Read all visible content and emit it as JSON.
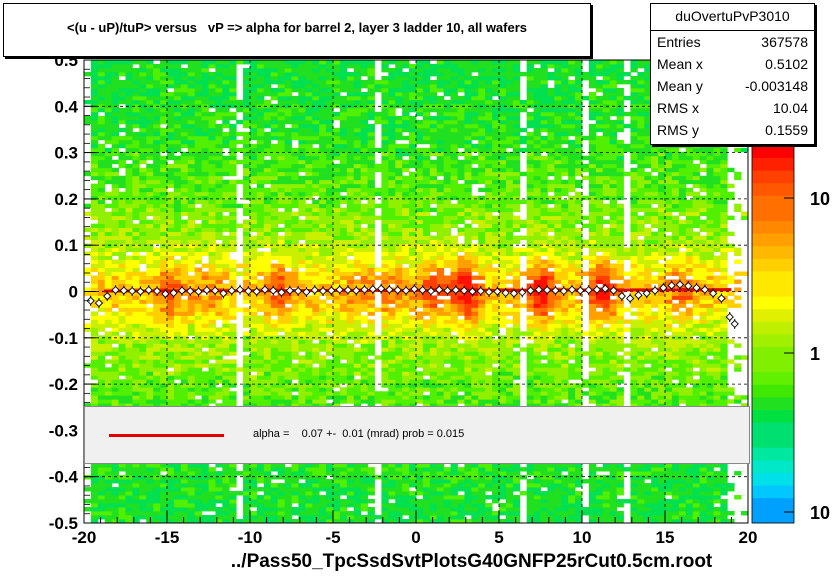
{
  "title": "<(u - uP)/tuP> versus   vP => alpha for barrel 2, layer 3 ladder 10, all wafers",
  "stats": {
    "name": "duOvertuPvP3010",
    "rows": [
      {
        "label": "Entries",
        "value": "367578"
      },
      {
        "label": "Mean x",
        "value": "0.5102"
      },
      {
        "label": "Mean y",
        "value": "-0.003148"
      },
      {
        "label": "RMS x",
        "value": "10.04"
      },
      {
        "label": "RMS y",
        "value": "0.1559"
      }
    ]
  },
  "fit": {
    "legend_text": "alpha =    0.07 +-  0.01 (mrad) prob = 0.015",
    "line_color": "#e00000"
  },
  "x_axis_title": "../Pass50_TpcSsdSvtPlotsG40GNFP25rCut0.5cm.root",
  "chart_data": {
    "type": "heatmap",
    "xlim": [
      -20,
      20
    ],
    "ylim": [
      -0.5,
      0.5
    ],
    "x_ticks": [
      -20,
      -15,
      -10,
      -5,
      0,
      5,
      10,
      15,
      20
    ],
    "x_tick_labels": [
      "-20",
      "-15",
      "-10",
      "-5",
      "0",
      "5",
      "10",
      "15",
      "20"
    ],
    "y_ticks": [
      -0.5,
      -0.4,
      -0.3,
      -0.2,
      -0.1,
      0,
      0.1,
      0.2,
      0.3,
      0.4,
      0.5
    ],
    "y_tick_labels": [
      "-0.5",
      "-0.4",
      "-0.3",
      "-0.2",
      "-0.1",
      "0",
      "0.1",
      "0.2",
      "0.3",
      "0.4",
      "0.5"
    ],
    "z_scale": "log",
    "z_tick_labels": [
      "1",
      "10",
      "10"
    ],
    "grid": true,
    "profile_points": {
      "x": [
        -19.6,
        -19.1,
        -18.6,
        -18.1,
        -17.6,
        -17.1,
        -16.6,
        -16.1,
        -15.6,
        -15.1,
        -14.6,
        -14.1,
        -13.6,
        -13.1,
        -12.6,
        -12.1,
        -11.6,
        -11.1,
        -10.6,
        -10.1,
        -9.6,
        -9.1,
        -8.6,
        -8.1,
        -7.6,
        -7.1,
        -6.6,
        -6.1,
        -5.6,
        -5.1,
        -4.6,
        -4.1,
        -3.6,
        -3.1,
        -2.6,
        -2.1,
        -1.6,
        -1.1,
        -0.6,
        -0.1,
        0.4,
        0.9,
        1.4,
        1.9,
        2.4,
        2.9,
        3.4,
        3.9,
        4.4,
        4.9,
        5.4,
        5.9,
        6.4,
        6.9,
        7.4,
        7.9,
        8.4,
        8.9,
        9.4,
        9.9,
        10.4,
        10.9,
        11.4,
        11.9,
        12.4,
        12.9,
        13.4,
        13.9,
        14.4,
        14.9,
        15.4,
        15.9,
        16.4,
        16.9,
        17.4,
        17.9,
        18.4,
        18.9,
        19.2
      ],
      "y": [
        -0.02,
        -0.025,
        -0.01,
        0.003,
        0.002,
        0.001,
        0.0,
        0.003,
        0.001,
        -0.005,
        -0.003,
        0.002,
        0.001,
        0.0,
        0.003,
        0.002,
        -0.004,
        0.002,
        0.004,
        0.001,
        0.0,
        0.004,
        0.002,
        -0.002,
        0.002,
        0.001,
        -0.001,
        0.003,
        0.001,
        0.002,
        0.004,
        0.003,
        0.002,
        0.004,
        0.005,
        0.006,
        0.004,
        0.003,
        0.002,
        0.005,
        0.003,
        0.001,
        0.004,
        0.002,
        0.003,
        0.002,
        0.0,
        0.001,
        -0.001,
        0.0,
        -0.003,
        -0.004,
        -0.002,
        0.002,
        0.004,
        0.003,
        0.002,
        0.001,
        0.004,
        0.002,
        0.003,
        0.004,
        0.006,
        0.002,
        -0.01,
        -0.015,
        -0.008,
        -0.004,
        0.002,
        0.008,
        0.013,
        0.015,
        0.012,
        0.008,
        0.004,
        -0.004,
        -0.015,
        -0.055,
        -0.07
      ]
    },
    "fit_line": {
      "x": [
        -18.8,
        19.0
      ],
      "y": [
        0.001,
        0.004
      ]
    }
  }
}
